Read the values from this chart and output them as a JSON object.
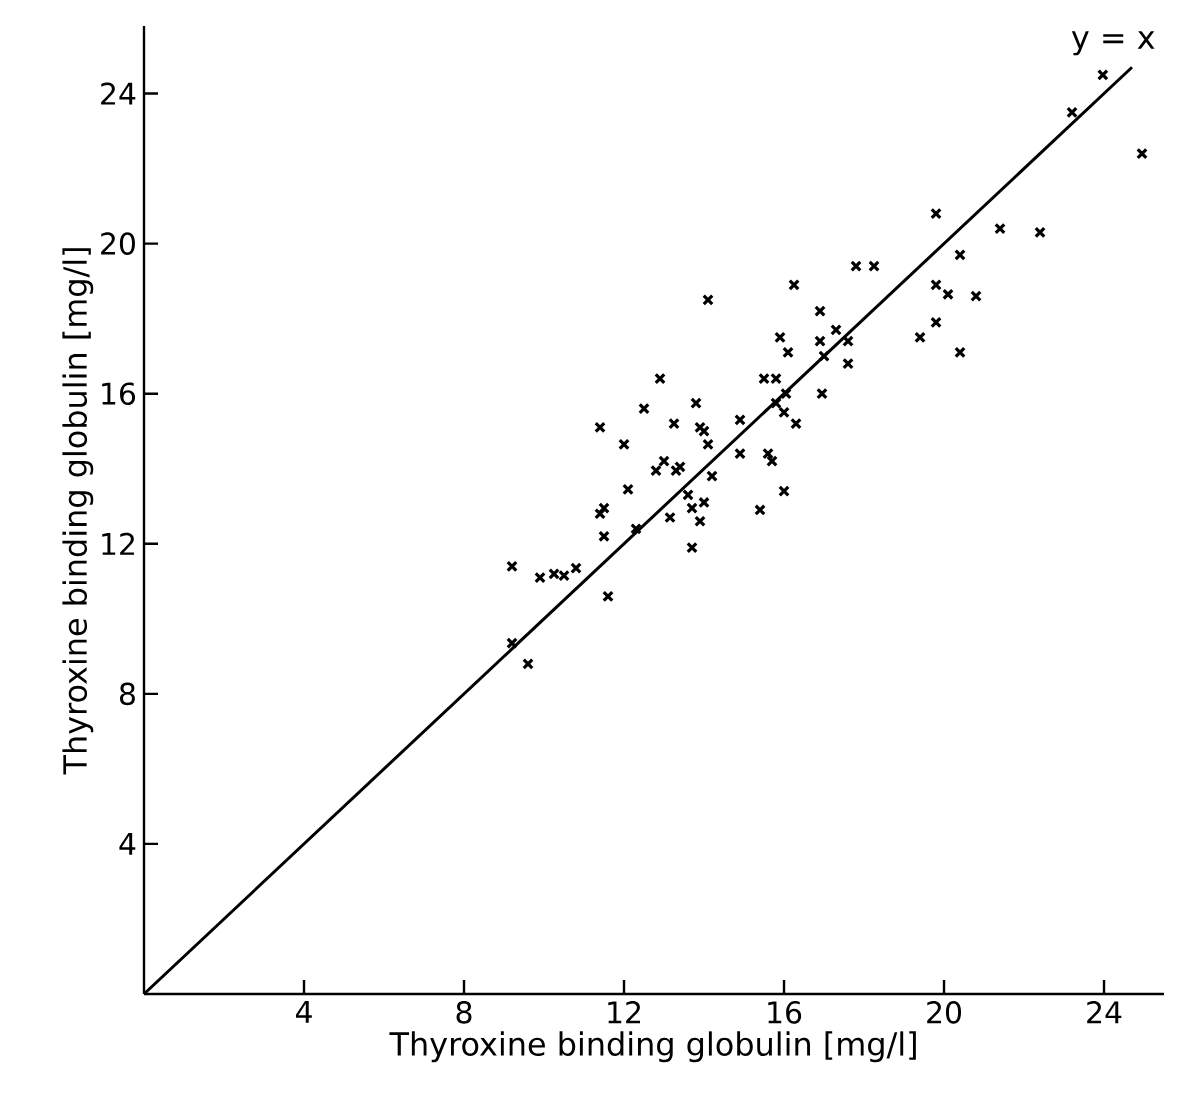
{
  "chart_data": {
    "type": "scatter",
    "xlabel": "Thyroxine binding globulin [mg/l]",
    "ylabel": "Thyroxine binding globulin [mg/l]",
    "xlim": [
      0,
      25.5
    ],
    "ylim": [
      0,
      25.8
    ],
    "xticks": [
      4,
      8,
      12,
      16,
      20,
      24
    ],
    "yticks": [
      4,
      8,
      12,
      16,
      20,
      24
    ],
    "series": [
      {
        "marker": "cross",
        "color": "#000000",
        "x": [
          23.97,
          23.2,
          24.95,
          19.8,
          21.4,
          22.4,
          20.4,
          17.8,
          18.25,
          16.25,
          19.8,
          20.1,
          20.8,
          14.1,
          16.9,
          17.3,
          17.6,
          19.8,
          15.9,
          16.9,
          19.4,
          16.1,
          20.4,
          17.0,
          17.6,
          12.9,
          15.5,
          15.8,
          16.95,
          16.05,
          12.5,
          13.8,
          15.8,
          16.0,
          14.9,
          11.4,
          13.25,
          13.9,
          14.0,
          16.3,
          12.0,
          14.1,
          14.9,
          15.6,
          15.7,
          13.0,
          12.8,
          13.3,
          13.4,
          14.2,
          12.1,
          16.0,
          13.6,
          11.4,
          11.5,
          13.7,
          14.0,
          15.4,
          13.15,
          13.9,
          12.3,
          11.5,
          13.7,
          9.2,
          9.9,
          10.25,
          10.5,
          10.8,
          11.6,
          9.2,
          9.6
        ],
        "values": [
          24.5,
          23.5,
          22.4,
          20.8,
          20.4,
          20.3,
          19.7,
          19.4,
          19.4,
          18.9,
          18.9,
          18.65,
          18.6,
          18.5,
          18.2,
          17.7,
          17.4,
          17.9,
          17.5,
          17.4,
          17.5,
          17.1,
          17.1,
          17.0,
          16.8,
          16.4,
          16.4,
          16.4,
          16.0,
          16.0,
          15.6,
          15.75,
          15.75,
          15.5,
          15.3,
          15.1,
          15.2,
          15.1,
          15.0,
          15.2,
          14.65,
          14.65,
          14.4,
          14.4,
          14.2,
          14.2,
          13.95,
          13.95,
          14.05,
          13.8,
          13.45,
          13.4,
          13.3,
          12.8,
          12.95,
          12.95,
          13.1,
          12.9,
          12.7,
          12.6,
          12.4,
          12.2,
          11.9,
          11.4,
          11.1,
          11.2,
          11.15,
          11.35,
          10.6,
          9.35,
          8.8
        ]
      },
      {
        "type": "line",
        "marker": "none",
        "name": "y = x",
        "color": "#000000",
        "x": [
          0,
          24.7
        ],
        "values": [
          0,
          24.7
        ]
      }
    ]
  }
}
